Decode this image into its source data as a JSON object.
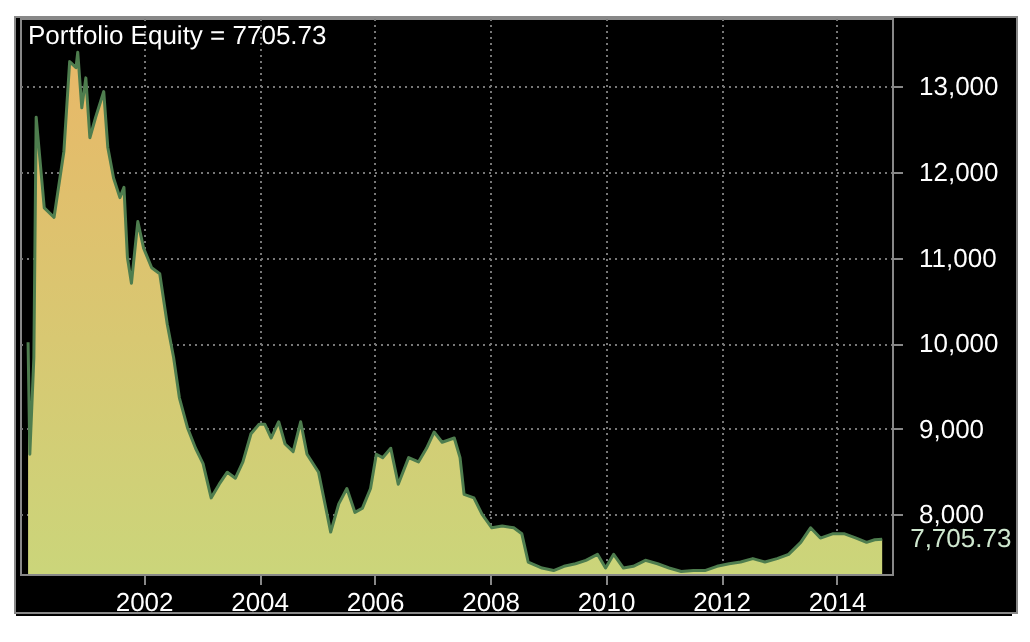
{
  "chart_data": {
    "type": "area",
    "title": "Portfolio Equity = 7705.73",
    "color": "#4e7d4e",
    "x": [
      2000.0,
      2000.03,
      2000.1,
      2000.14,
      2000.28,
      2000.45,
      2000.62,
      2000.72,
      2000.83,
      2000.86,
      2000.93,
      2001.0,
      2001.07,
      2001.17,
      2001.31,
      2001.38,
      2001.48,
      2001.59,
      2001.66,
      2001.72,
      2001.79,
      2001.9,
      2002.0,
      2002.14,
      2002.28,
      2002.41,
      2002.52,
      2002.62,
      2002.76,
      2002.9,
      2003.03,
      2003.17,
      2003.31,
      2003.45,
      2003.59,
      2003.72,
      2003.86,
      2004.0,
      2004.1,
      2004.21,
      2004.34,
      2004.45,
      2004.59,
      2004.72,
      2004.83,
      2005.03,
      2005.24,
      2005.38,
      2005.52,
      2005.66,
      2005.79,
      2005.93,
      2006.03,
      2006.14,
      2006.28,
      2006.41,
      2006.59,
      2006.76,
      2006.9,
      2007.03,
      2007.17,
      2007.38,
      2007.48,
      2007.55,
      2007.72,
      2007.86,
      2008.03,
      2008.21,
      2008.41,
      2008.55,
      2008.66,
      2008.9,
      2009.1,
      2009.28,
      2009.48,
      2009.66,
      2009.86,
      2010.0,
      2010.14,
      2010.31,
      2010.48,
      2010.69,
      2010.9,
      2011.1,
      2011.31,
      2011.52,
      2011.72,
      2011.93,
      2012.14,
      2012.34,
      2012.55,
      2012.76,
      2012.97,
      2013.17,
      2013.38,
      2013.55,
      2013.72,
      2013.93,
      2014.14,
      2014.34,
      2014.52,
      2014.66,
      2014.79
    ],
    "values": [
      10010,
      8700,
      9830,
      12640,
      11580,
      11470,
      12240,
      13290,
      13220,
      13400,
      12750,
      13100,
      12400,
      12640,
      12940,
      12290,
      11930,
      11700,
      11820,
      11000,
      10700,
      11420,
      11110,
      10880,
      10810,
      10220,
      9830,
      9360,
      9010,
      8770,
      8590,
      8190,
      8350,
      8490,
      8420,
      8610,
      8940,
      9050,
      9050,
      8890,
      9080,
      8820,
      8730,
      9080,
      8700,
      8490,
      7790,
      8120,
      8300,
      8020,
      8070,
      8300,
      8700,
      8660,
      8770,
      8350,
      8660,
      8610,
      8770,
      8960,
      8840,
      8890,
      8660,
      8230,
      8190,
      8000,
      7840,
      7860,
      7840,
      7770,
      7440,
      7370,
      7340,
      7390,
      7420,
      7460,
      7530,
      7370,
      7530,
      7370,
      7390,
      7460,
      7420,
      7370,
      7330,
      7340,
      7340,
      7390,
      7420,
      7440,
      7480,
      7440,
      7480,
      7530,
      7670,
      7840,
      7720,
      7770,
      7770,
      7720,
      7670,
      7700,
      7705.73
    ],
    "xlim": [
      1999.86,
      2014.96
    ],
    "ylim": [
      7300,
      13800
    ],
    "xticks": [
      2002,
      2004,
      2006,
      2008,
      2010,
      2012,
      2014
    ],
    "yticks": [
      {
        "value": 8000,
        "label": "8,000"
      },
      {
        "value": 9000,
        "label": "9,000"
      },
      {
        "value": 10000,
        "label": "10,000"
      },
      {
        "value": 11000,
        "label": "11,000"
      },
      {
        "value": 12000,
        "label": "12,000"
      },
      {
        "value": 13000,
        "label": "13,000"
      }
    ],
    "annotations": [
      {
        "text": "7,705.73",
        "x": 2014.79,
        "y": 7705.73
      }
    ],
    "grid": true
  }
}
